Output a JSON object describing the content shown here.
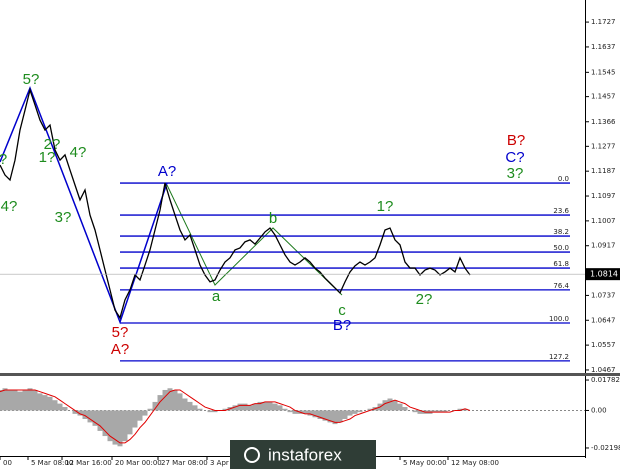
{
  "chart_data": [
    {
      "type": "line",
      "color": "#000000",
      "xlim": [
        0,
        117
      ],
      "ylim": [
        1.0456,
        1.1807
      ],
      "yticks": [
        1.1727,
        1.1637,
        1.1545,
        1.1457,
        1.1366,
        1.1277,
        1.1187,
        1.1097,
        1.1007,
        1.0917,
        1.0737,
        1.0647,
        1.0557,
        1.0467
      ],
      "values": [
        1.1209,
        1.1173,
        1.1155,
        1.1227,
        1.1336,
        1.1408,
        1.1481,
        1.1427,
        1.1372,
        1.1336,
        1.1354,
        1.1264,
        1.1227,
        1.1246,
        1.1191,
        1.1137,
        1.1083,
        1.1119,
        1.1028,
        1.0974,
        1.0902,
        1.0829,
        1.0757,
        1.0684,
        1.0656,
        1.0721,
        1.0757,
        1.0811,
        1.0793,
        1.0847,
        1.0902,
        1.0974,
        1.1046,
        1.1144,
        1.1083,
        1.1028,
        1.0974,
        1.0938,
        1.0956,
        1.0902,
        1.0847,
        1.0811,
        1.0786,
        1.0793,
        1.0829,
        1.0858,
        1.0873,
        1.0902,
        1.0909,
        1.0931,
        1.0938,
        1.0923,
        1.0945,
        1.0967,
        1.0981,
        1.0956,
        1.092,
        1.0884,
        1.0858,
        1.0847,
        1.0858,
        1.0873,
        1.0858,
        1.0836,
        1.0822,
        1.08,
        1.0782,
        1.0764,
        1.0746,
        1.0786,
        1.0822,
        1.0844,
        1.0858,
        1.0847,
        1.0858,
        1.0873,
        1.092,
        1.0974,
        1.0981,
        1.0938,
        1.092,
        1.0858,
        1.0836,
        1.0836,
        1.0811,
        1.0829,
        1.0836,
        1.0829,
        1.0811,
        1.0822,
        1.0836,
        1.0822,
        1.0873,
        1.0836,
        1.0811
      ],
      "current_price": 1.0814,
      "fib_color": "#0000cc",
      "fib_levels": [
        {
          "label": "0.0",
          "price": 1.1144
        },
        {
          "label": "23.6",
          "price": 1.1028
        },
        {
          "label": "38.2",
          "price": 1.0952
        },
        {
          "label": "50.0",
          "price": 1.0894
        },
        {
          "label": "61.8",
          "price": 1.0836
        },
        {
          "label": "76.4",
          "price": 1.0757
        },
        {
          "label": "100.0",
          "price": 1.0637
        },
        {
          "label": "127.2",
          "price": 1.05
        }
      ],
      "annotations": [
        {
          "text": "?",
          "color": "#1e8c1e"
        },
        {
          "text": "5?",
          "color": "#1e8c1e"
        },
        {
          "text": "2?",
          "color": "#1e8c1e"
        },
        {
          "text": "1?",
          "color": "#1e8c1e"
        },
        {
          "text": "4?",
          "color": "#1e8c1e"
        },
        {
          "text": "4?",
          "color": "#1e8c1e"
        },
        {
          "text": "3?",
          "color": "#1e8c1e"
        },
        {
          "text": "5?",
          "color": "#cc0000"
        },
        {
          "text": "A?",
          "color": "#cc0000"
        },
        {
          "text": "A?",
          "color": "#0000cc"
        },
        {
          "text": "a",
          "color": "#1e8c1e"
        },
        {
          "text": "b",
          "color": "#1e8c1e"
        },
        {
          "text": "c",
          "color": "#1e8c1e"
        },
        {
          "text": "B?",
          "color": "#0000cc"
        },
        {
          "text": "1?",
          "color": "#1e8c1e"
        },
        {
          "text": "2?",
          "color": "#1e8c1e"
        },
        {
          "text": "B?",
          "color": "#cc0000"
        },
        {
          "text": "C?",
          "color": "#0000cc"
        },
        {
          "text": "3?",
          "color": "#1e8c1e"
        }
      ]
    },
    {
      "type": "bar",
      "color": "#a8a8a8",
      "xlim": [
        0,
        117
      ],
      "ylim": [
        -0.0261,
        0.0196
      ],
      "yticks": [
        0.01782,
        {
          "value": 0,
          "label": "0.00"
        },
        -0.02198
      ],
      "xticks": [
        {
          "value": 0,
          "label": "00"
        },
        {
          "value": 5.6,
          "label": "5 Mar 08:00"
        },
        {
          "value": 12.4,
          "label": "12 Mar 16:00"
        },
        {
          "value": 22.4,
          "label": "20 Mar 00:00"
        },
        {
          "value": 31.6,
          "label": "27 Mar 08:00"
        },
        {
          "value": 41.4,
          "label": "3 Apr"
        },
        {
          "value": 80,
          "label": "5 May 00:00"
        },
        {
          "value": 89.6,
          "label": "12 May 08:00"
        }
      ],
      "values": [
        0.012,
        0.013,
        0.012,
        0.012,
        0.011,
        0.012,
        0.013,
        0.012,
        0.01,
        0.009,
        0.008,
        0.006,
        0.004,
        0.002,
        0,
        -0.002,
        -0.003,
        -0.005,
        -0.007,
        -0.009,
        -0.012,
        -0.015,
        -0.018,
        -0.02,
        -0.021,
        -0.018,
        -0.014,
        -0.01,
        -0.006,
        -0.003,
        0.001,
        0.005,
        0.009,
        0.012,
        0.013,
        0.012,
        0.01,
        0.007,
        0.005,
        0.003,
        0.001,
        0,
        -0.001,
        -0.001,
        0,
        0.001,
        0.002,
        0.003,
        0.004,
        0.004,
        0.003,
        0.004,
        0.005,
        0.005,
        0.005,
        0.004,
        0.003,
        0.001,
        -0.001,
        -0.002,
        -0.002,
        -0.002,
        -0.003,
        -0.004,
        -0.005,
        -0.006,
        -0.007,
        -0.008,
        -0.007,
        -0.005,
        -0.003,
        -0.002,
        -0.001,
        0,
        0.001,
        0.002,
        0.004,
        0.006,
        0.007,
        0.006,
        0.004,
        0.002,
        0,
        -0.001,
        -0.002,
        -0.002,
        -0.002,
        -0.001,
        -0.001,
        -0.001,
        0,
        0,
        0.001,
        0.001,
        0
      ],
      "signal": {
        "color": "#e00000",
        "values": [
          0.011,
          0.012,
          0.012,
          0.012,
          0.012,
          0.012,
          0.012,
          0.012,
          0.011,
          0.01,
          0.009,
          0.008,
          0.006,
          0.004,
          0.002,
          0,
          -0.002,
          -0.003,
          -0.005,
          -0.007,
          -0.009,
          -0.012,
          -0.015,
          -0.017,
          -0.019,
          -0.019,
          -0.017,
          -0.014,
          -0.01,
          -0.007,
          -0.003,
          0.001,
          0.005,
          0.008,
          0.011,
          0.012,
          0.012,
          0.01,
          0.008,
          0.006,
          0.004,
          0.002,
          0.001,
          0,
          0,
          0,
          0.001,
          0.002,
          0.003,
          0.003,
          0.003,
          0.004,
          0.004,
          0.005,
          0.005,
          0.005,
          0.004,
          0.003,
          0.002,
          0,
          -0.001,
          -0.002,
          -0.002,
          -0.003,
          -0.004,
          -0.005,
          -0.006,
          -0.007,
          -0.007,
          -0.006,
          -0.005,
          -0.003,
          -0.002,
          -0.001,
          0,
          0.001,
          0.002,
          0.004,
          0.005,
          0.006,
          0.005,
          0.004,
          0.002,
          0.001,
          0,
          -0.001,
          -0.001,
          -0.001,
          -0.001,
          -0.001,
          -0.001,
          0,
          0,
          0.001,
          0
        ]
      }
    }
  ],
  "watermark": "instaforex"
}
